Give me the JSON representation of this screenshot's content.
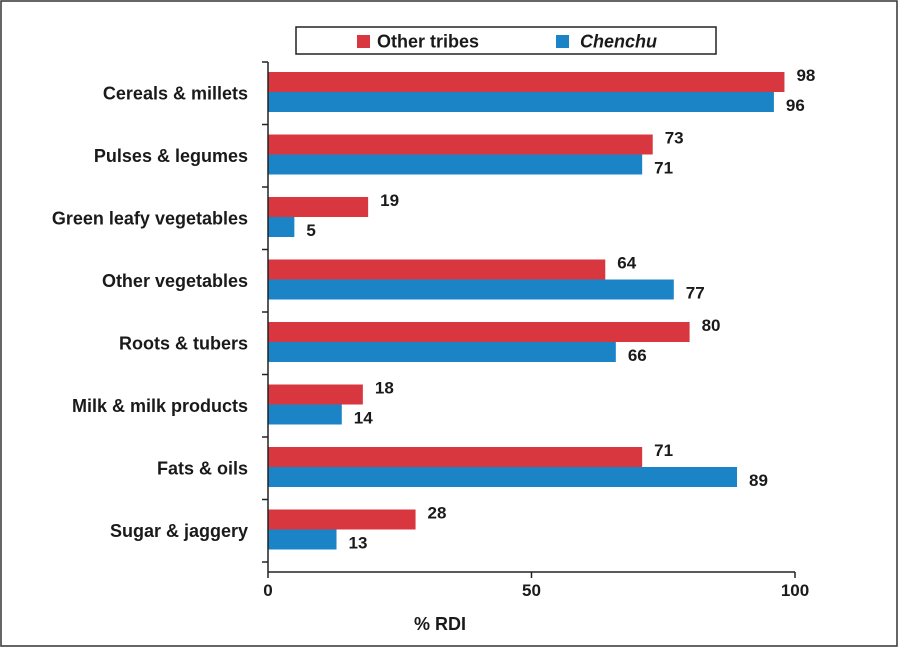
{
  "chart_data": {
    "type": "bar",
    "orientation": "horizontal",
    "categories": [
      "Cereals & millets",
      "Pulses & legumes",
      "Green leafy vegetables",
      "Other vegetables",
      "Roots & tubers",
      "Milk & milk products",
      "Fats & oils",
      "Sugar & jaggery"
    ],
    "series": [
      {
        "name": "Other tribes",
        "color": "#d9373f",
        "values": [
          98,
          73,
          19,
          64,
          80,
          18,
          71,
          28
        ]
      },
      {
        "name": "Chenchu",
        "color": "#1a84c7",
        "values": [
          96,
          71,
          5,
          77,
          66,
          14,
          89,
          13
        ]
      }
    ],
    "xlabel": "% RDI",
    "xlim": [
      0,
      100
    ],
    "xticks": [
      0,
      50,
      100
    ],
    "legend": "top",
    "grid": false
  }
}
